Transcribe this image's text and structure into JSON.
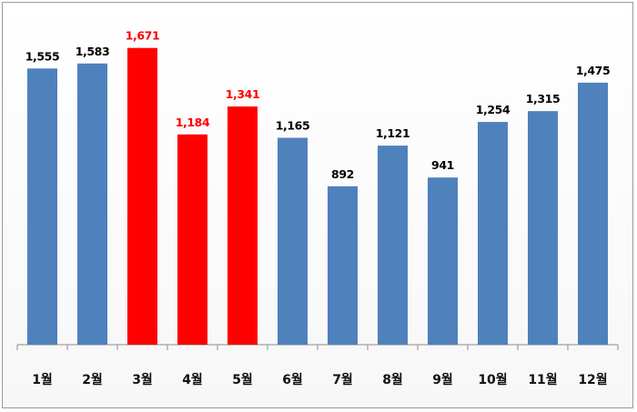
{
  "chart_data": {
    "type": "bar",
    "categories": [
      "1월",
      "2월",
      "3월",
      "4월",
      "5월",
      "6월",
      "7월",
      "8월",
      "9월",
      "10월",
      "11월",
      "12월"
    ],
    "values": [
      1555,
      1583,
      1671,
      1184,
      1341,
      1165,
      892,
      1121,
      941,
      1254,
      1315,
      1475
    ],
    "value_labels": [
      "1,555",
      "1,583",
      "1,671",
      "1,184",
      "1,341",
      "1,165",
      "892",
      "1,121",
      "941",
      "1,254",
      "1,315",
      "1,475"
    ],
    "highlighted": [
      false,
      false,
      true,
      true,
      true,
      false,
      false,
      false,
      false,
      false,
      false,
      false
    ],
    "colors": {
      "default_bar": "#4f81bd",
      "highlight_bar": "#ff0000",
      "default_label": "#000000",
      "highlight_label": "#ff0000"
    },
    "title": "",
    "xlabel": "",
    "ylabel": "",
    "ylim": [
      0,
      1700
    ],
    "grid": false,
    "legend": "none"
  }
}
